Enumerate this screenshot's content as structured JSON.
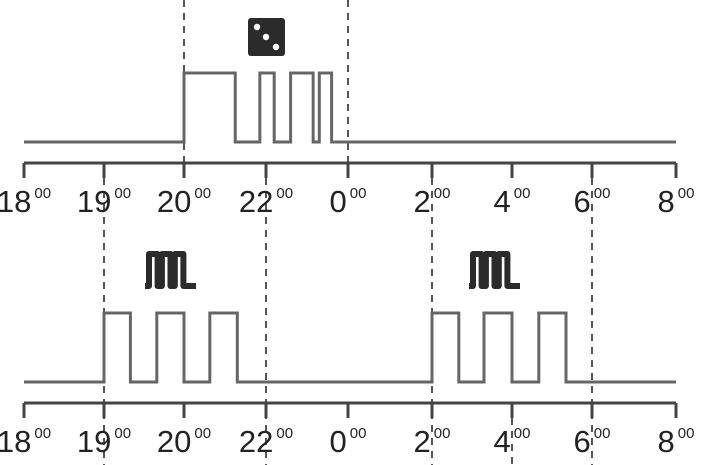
{
  "colors": {
    "signal": "#666666",
    "axis": "#444444",
    "text": "#222222",
    "icon": "#2b2b2b",
    "dashed": "#555555"
  },
  "axis": {
    "ticks": [
      {
        "hour": 18,
        "main": "18",
        "sup": "00"
      },
      {
        "hour": 19,
        "main": "19",
        "sup": "00"
      },
      {
        "hour": 20,
        "main": "20",
        "sup": "00"
      },
      {
        "hour": 22,
        "main": "22",
        "sup": "00"
      },
      {
        "hour": 0,
        "main": "0",
        "sup": "00"
      },
      {
        "hour": 2,
        "main": "2",
        "sup": "00"
      },
      {
        "hour": 4,
        "main": "4",
        "sup": "00"
      },
      {
        "hour": 6,
        "main": "6",
        "sup": "00"
      },
      {
        "hour": 8,
        "main": "8",
        "sup": "00"
      }
    ]
  },
  "timelines": [
    {
      "icon": "dice-icon",
      "window_hours": [
        20,
        0
      ],
      "pulses": [
        [
          20,
          21.25
        ],
        [
          21.85,
          22.2
        ],
        [
          22.6,
          23.15
        ],
        [
          23.3,
          23.6
        ]
      ]
    },
    {
      "icon": "pulse-wave-icon",
      "window_hours": [
        19,
        22,
        2,
        6
      ],
      "pulses": [
        [
          19,
          19.33
        ],
        [
          19.66,
          20
        ],
        [
          20.63,
          21.3
        ],
        [
          2,
          2.67
        ],
        [
          3.3,
          4
        ],
        [
          4.67,
          5.35
        ]
      ]
    }
  ]
}
